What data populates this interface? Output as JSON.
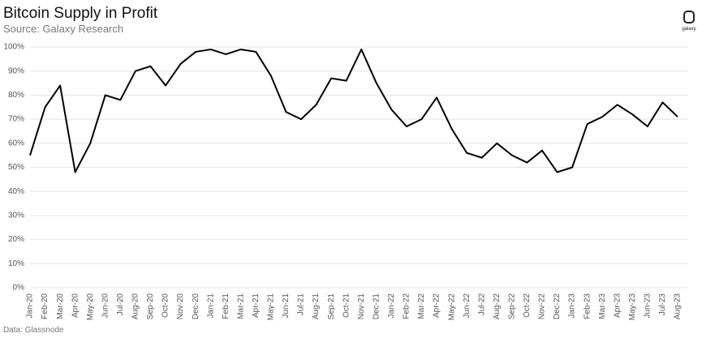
{
  "chart_data": {
    "type": "line",
    "title": "Bitcoin Supply in Profit",
    "subtitle": "Source: Galaxy Research",
    "source": "Data: Glassnode",
    "logo_text": "galaxy",
    "x": [
      "Jan-20",
      "Feb-20",
      "Mar-20",
      "Apr-20",
      "May-20",
      "Jun-20",
      "Jul-20",
      "Aug-20",
      "Sep-20",
      "Oct-20",
      "Nov-20",
      "Dec-20",
      "Jan-21",
      "Feb-21",
      "Mar-21",
      "Apr-21",
      "May-21",
      "Jun-21",
      "Jul-21",
      "Aug-21",
      "Sep-21",
      "Oct-21",
      "Nov-21",
      "Dec-21",
      "Jan-22",
      "Feb-22",
      "Mar-22",
      "Apr-22",
      "May-22",
      "Jun-22",
      "Jul-22",
      "Aug-22",
      "Sep-22",
      "Oct-22",
      "Nov-22",
      "Dec-22",
      "Jan-23",
      "Feb-23",
      "Mar-23",
      "Apr-23",
      "May-23",
      "Jun-23",
      "Jul-23",
      "Aug-23"
    ],
    "series": [
      {
        "color": "#000000",
        "values": [
          55,
          75,
          84,
          48,
          60,
          80,
          78,
          90,
          92,
          84,
          93,
          98,
          99,
          97,
          99,
          98,
          88,
          73,
          70,
          76,
          87,
          86,
          99,
          85,
          74,
          67,
          70,
          79,
          66,
          56,
          54,
          60,
          55,
          52,
          57,
          48,
          50,
          68,
          71,
          76,
          72,
          67,
          77,
          71
        ]
      }
    ],
    "ylim": [
      0,
      100
    ],
    "yticks": [
      {
        "value": 0,
        "label": "0%"
      },
      {
        "value": 10,
        "label": "10%"
      },
      {
        "value": 20,
        "label": "20%"
      },
      {
        "value": 30,
        "label": "30%"
      },
      {
        "value": 40,
        "label": "40%"
      },
      {
        "value": 50,
        "label": "50%"
      },
      {
        "value": 60,
        "label": "60%"
      },
      {
        "value": 70,
        "label": "70%"
      },
      {
        "value": 80,
        "label": "80%"
      },
      {
        "value": 90,
        "label": "90%"
      },
      {
        "value": 100,
        "label": "100%"
      }
    ],
    "grid": true
  }
}
